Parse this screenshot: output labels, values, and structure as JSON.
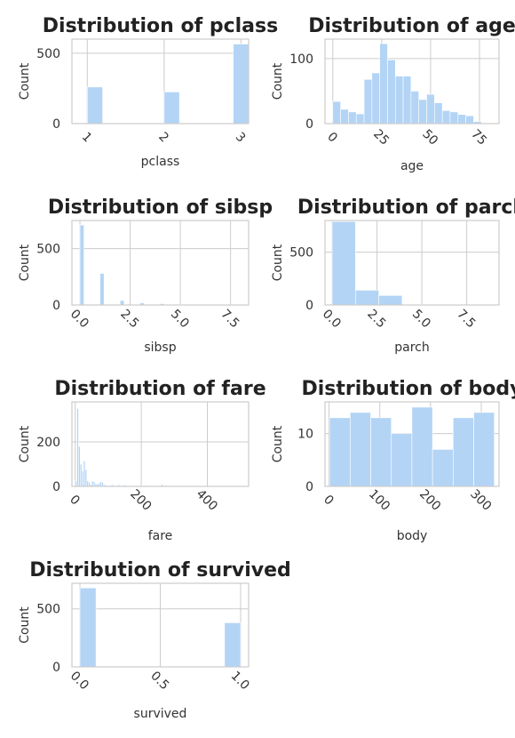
{
  "figure": {
    "background": "#ffffff",
    "bar_color": "#b3d4f5",
    "grid_color": "#cccccc",
    "spine_color": "#cccccc"
  },
  "chart_data": [
    {
      "type": "bar",
      "title": "Distribution of pclass",
      "xlabel": "pclass",
      "ylabel": "Count",
      "xlim": [
        0.8,
        3.1
      ],
      "ylim": [
        0,
        600
      ],
      "xticks": [
        1,
        2,
        3
      ],
      "xtick_labels": [
        "1",
        "2",
        "3"
      ],
      "yticks": [
        0,
        500
      ],
      "ytick_labels": [
        "0",
        "500"
      ],
      "bins": [
        {
          "x0": 1.0,
          "x1": 1.2,
          "value": 260
        },
        {
          "x0": 2.0,
          "x1": 2.2,
          "value": 225
        },
        {
          "x0": 2.9,
          "x1": 3.1,
          "value": 565
        }
      ]
    },
    {
      "type": "bar",
      "title": "Distribution of age",
      "xlabel": "age",
      "ylabel": "Count",
      "xlim": [
        -4,
        85
      ],
      "ylim": [
        0,
        130
      ],
      "xticks": [
        0,
        25,
        50,
        75
      ],
      "xtick_labels": [
        "0",
        "25",
        "50",
        "75"
      ],
      "yticks": [
        0,
        100
      ],
      "ytick_labels": [
        "0",
        "100"
      ],
      "bins": [
        {
          "x0": 0,
          "x1": 4,
          "value": 34
        },
        {
          "x0": 4,
          "x1": 8,
          "value": 22
        },
        {
          "x0": 8,
          "x1": 12,
          "value": 18
        },
        {
          "x0": 12,
          "x1": 16,
          "value": 15
        },
        {
          "x0": 16,
          "x1": 20,
          "value": 68
        },
        {
          "x0": 20,
          "x1": 24,
          "value": 78
        },
        {
          "x0": 24,
          "x1": 28,
          "value": 123
        },
        {
          "x0": 28,
          "x1": 32,
          "value": 98
        },
        {
          "x0": 32,
          "x1": 36,
          "value": 73
        },
        {
          "x0": 36,
          "x1": 40,
          "value": 73
        },
        {
          "x0": 40,
          "x1": 44,
          "value": 50
        },
        {
          "x0": 44,
          "x1": 48,
          "value": 37
        },
        {
          "x0": 48,
          "x1": 52,
          "value": 45
        },
        {
          "x0": 52,
          "x1": 56,
          "value": 32
        },
        {
          "x0": 56,
          "x1": 60,
          "value": 20
        },
        {
          "x0": 60,
          "x1": 64,
          "value": 18
        },
        {
          "x0": 64,
          "x1": 68,
          "value": 14
        },
        {
          "x0": 68,
          "x1": 72,
          "value": 12
        },
        {
          "x0": 72,
          "x1": 76,
          "value": 3
        },
        {
          "x0": 76,
          "x1": 80,
          "value": 1
        }
      ]
    },
    {
      "type": "bar",
      "title": "Distribution of sibsp",
      "xlabel": "sibsp",
      "ylabel": "Count",
      "xlim": [
        -0.4,
        8.4
      ],
      "ylim": [
        0,
        750
      ],
      "xticks": [
        0,
        2.5,
        5,
        7.5
      ],
      "xtick_labels": [
        "0.0",
        "2.5",
        "5.0",
        "7.5"
      ],
      "yticks": [
        0,
        500
      ],
      "ytick_labels": [
        "0",
        "500"
      ],
      "bins": [
        {
          "x0": 0.0,
          "x1": 0.2,
          "value": 710
        },
        {
          "x0": 1.0,
          "x1": 1.2,
          "value": 280
        },
        {
          "x0": 2.0,
          "x1": 2.2,
          "value": 40
        },
        {
          "x0": 3.0,
          "x1": 3.2,
          "value": 18
        },
        {
          "x0": 4.0,
          "x1": 4.2,
          "value": 12
        },
        {
          "x0": 5.0,
          "x1": 5.2,
          "value": 5
        },
        {
          "x0": 7.9,
          "x1": 8.1,
          "value": 3
        }
      ]
    },
    {
      "type": "bar",
      "title": "Distribution of parch",
      "xlabel": "parch",
      "ylabel": "Count",
      "xlim": [
        -0.4,
        9.3
      ],
      "ylim": [
        0,
        800
      ],
      "xticks": [
        0,
        2.5,
        5,
        7.5
      ],
      "xtick_labels": [
        "0.0",
        "2.5",
        "5.0",
        "7.5"
      ],
      "yticks": [
        0,
        500
      ],
      "ytick_labels": [
        "0",
        "500"
      ],
      "bins": [
        {
          "x0": 0.0,
          "x1": 1.3,
          "value": 790
        },
        {
          "x0": 1.3,
          "x1": 2.6,
          "value": 140
        },
        {
          "x0": 2.6,
          "x1": 3.9,
          "value": 90
        },
        {
          "x0": 3.9,
          "x1": 5.2,
          "value": 6
        },
        {
          "x0": 5.2,
          "x1": 6.5,
          "value": 4
        },
        {
          "x0": 7.7,
          "x1": 9.0,
          "value": 2
        }
      ]
    },
    {
      "type": "bar",
      "title": "Distribution of fare",
      "xlabel": "fare",
      "ylabel": "Count",
      "xlim": [
        -10,
        525
      ],
      "ylim": [
        0,
        380
      ],
      "xticks": [
        0,
        200,
        400
      ],
      "xtick_labels": [
        "0",
        "200",
        "400"
      ],
      "yticks": [
        0,
        200
      ],
      "ytick_labels": [
        "0",
        "200"
      ],
      "bins": [
        {
          "x0": 0,
          "x1": 5,
          "value": 25
        },
        {
          "x0": 5,
          "x1": 10,
          "value": 350
        },
        {
          "x0": 10,
          "x1": 15,
          "value": 180
        },
        {
          "x0": 15,
          "x1": 20,
          "value": 100
        },
        {
          "x0": 20,
          "x1": 25,
          "value": 70
        },
        {
          "x0": 25,
          "x1": 30,
          "value": 115
        },
        {
          "x0": 30,
          "x1": 35,
          "value": 75
        },
        {
          "x0": 35,
          "x1": 40,
          "value": 25
        },
        {
          "x0": 40,
          "x1": 45,
          "value": 20
        },
        {
          "x0": 45,
          "x1": 50,
          "value": 8
        },
        {
          "x0": 50,
          "x1": 55,
          "value": 25
        },
        {
          "x0": 55,
          "x1": 60,
          "value": 20
        },
        {
          "x0": 60,
          "x1": 65,
          "value": 12
        },
        {
          "x0": 65,
          "x1": 70,
          "value": 10
        },
        {
          "x0": 70,
          "x1": 75,
          "value": 15
        },
        {
          "x0": 75,
          "x1": 80,
          "value": 22
        },
        {
          "x0": 80,
          "x1": 85,
          "value": 18
        },
        {
          "x0": 85,
          "x1": 90,
          "value": 8
        },
        {
          "x0": 90,
          "x1": 95,
          "value": 6
        },
        {
          "x0": 105,
          "x1": 110,
          "value": 5
        },
        {
          "x0": 110,
          "x1": 115,
          "value": 8
        },
        {
          "x0": 130,
          "x1": 135,
          "value": 7
        },
        {
          "x0": 145,
          "x1": 150,
          "value": 5
        },
        {
          "x0": 150,
          "x1": 155,
          "value": 6
        },
        {
          "x0": 160,
          "x1": 165,
          "value": 4
        },
        {
          "x0": 210,
          "x1": 215,
          "value": 5
        },
        {
          "x0": 225,
          "x1": 230,
          "value": 3
        },
        {
          "x0": 260,
          "x1": 265,
          "value": 9
        },
        {
          "x0": 510,
          "x1": 515,
          "value": 3
        }
      ]
    },
    {
      "type": "bar",
      "title": "Distribution of body",
      "xlabel": "body",
      "ylabel": "Count",
      "xlim": [
        -8,
        335
      ],
      "ylim": [
        0,
        16
      ],
      "xticks": [
        0,
        100,
        200,
        300
      ],
      "xtick_labels": [
        "0",
        "100",
        "200",
        "300"
      ],
      "yticks": [
        0,
        10
      ],
      "ytick_labels": [
        "0",
        "10"
      ],
      "bins": [
        {
          "x0": 1,
          "x1": 41.6,
          "value": 13
        },
        {
          "x0": 41.6,
          "x1": 82.2,
          "value": 14
        },
        {
          "x0": 82.2,
          "x1": 122.8,
          "value": 13
        },
        {
          "x0": 122.8,
          "x1": 163.4,
          "value": 10
        },
        {
          "x0": 163.4,
          "x1": 204,
          "value": 15
        },
        {
          "x0": 204,
          "x1": 244.6,
          "value": 7
        },
        {
          "x0": 244.6,
          "x1": 285.2,
          "value": 13
        },
        {
          "x0": 285.2,
          "x1": 325.8,
          "value": 14
        }
      ]
    },
    {
      "type": "bar",
      "title": "Distribution of survived",
      "xlabel": "survived",
      "ylabel": "Count",
      "xlim": [
        -0.05,
        1.05
      ],
      "ylim": [
        0,
        720
      ],
      "xticks": [
        0,
        0.5,
        1
      ],
      "xtick_labels": [
        "0.0",
        "0.5",
        "1.0"
      ],
      "yticks": [
        0,
        500
      ],
      "ytick_labels": [
        "0",
        "500"
      ],
      "bins": [
        {
          "x0": 0.0,
          "x1": 0.1,
          "value": 680
        },
        {
          "x0": 0.9,
          "x1": 1.0,
          "value": 380
        }
      ]
    }
  ]
}
